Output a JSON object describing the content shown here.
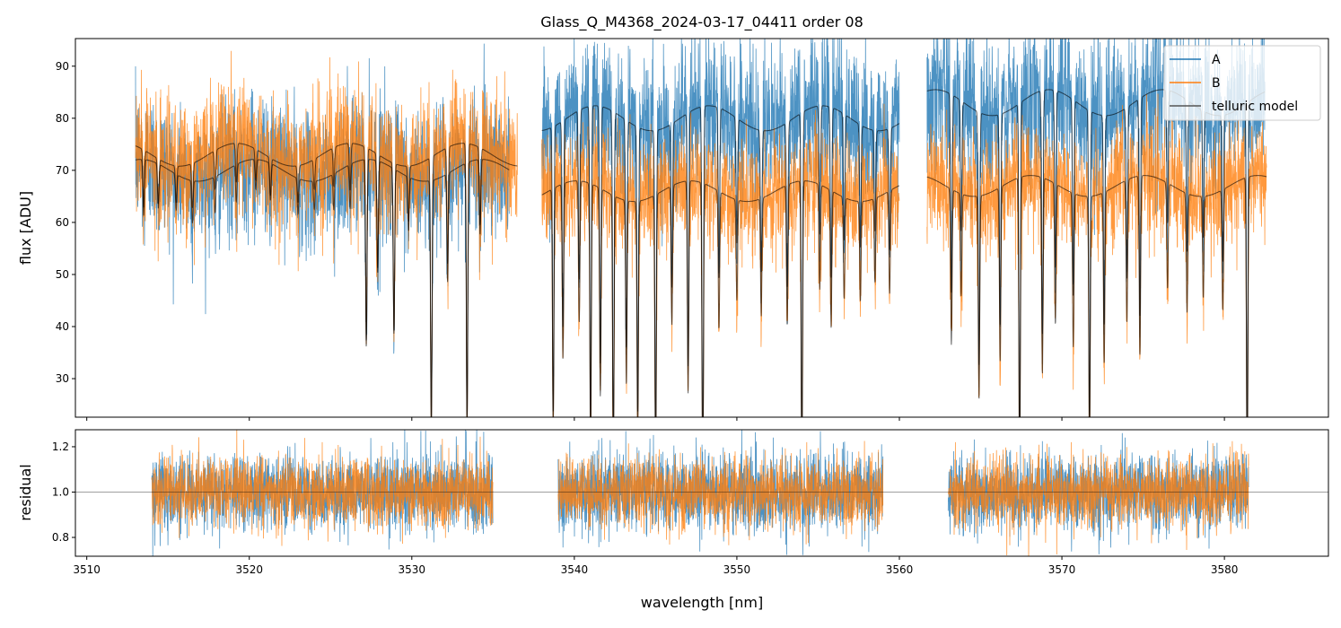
{
  "chart_data": [
    {
      "type": "line",
      "title": "Glass_Q_M4368_2024-03-17_04411  order 08",
      "xlabel": "wavelength [nm]",
      "ylabel": "flux [ADU]",
      "xlim": [
        3509.3,
        3586.4
      ],
      "ylim": [
        22.6,
        95.3
      ],
      "xticks": [
        3510,
        3520,
        3530,
        3540,
        3550,
        3560,
        3570,
        3580
      ],
      "yticks": [
        30,
        40,
        50,
        60,
        70,
        80,
        90
      ],
      "legend": {
        "placement": "top-right",
        "entries": [
          "A",
          "B",
          "telluric model"
        ]
      },
      "series": [
        {
          "name": "A",
          "color": "#1f77b4",
          "segments": [
            {
              "range": [
                3513.0,
                3536.0
              ],
              "level": 70
            },
            {
              "range": [
                3538.0,
                3560.0
              ],
              "level": 80
            },
            {
              "range": [
                3561.7,
                3582.5
              ],
              "level": 83
            }
          ],
          "noise": 0.09
        },
        {
          "name": "B",
          "color": "#ff7f0e",
          "segments": [
            {
              "range": [
                3513.0,
                3536.5
              ],
              "level": 73
            },
            {
              "range": [
                3538.0,
                3560.0
              ],
              "level": 66
            },
            {
              "range": [
                3561.7,
                3582.6
              ],
              "level": 67
            }
          ],
          "noise": 0.08
        },
        {
          "name": "telluric model",
          "color": "#000000"
        }
      ],
      "telluric_lines": [
        [
          3513.5,
          0.15
        ],
        [
          3514.4,
          0.12
        ],
        [
          3515.5,
          0.1
        ],
        [
          3516.5,
          0.12
        ],
        [
          3517.9,
          0.1
        ],
        [
          3519.2,
          0.1
        ],
        [
          3520.4,
          0.08
        ],
        [
          3521.3,
          0.1
        ],
        [
          3523.0,
          0.1
        ],
        [
          3524.0,
          0.08
        ],
        [
          3525.2,
          0.1
        ],
        [
          3526.2,
          0.12
        ],
        [
          3527.2,
          0.5
        ],
        [
          3527.9,
          0.3
        ],
        [
          3528.9,
          0.45
        ],
        [
          3529.8,
          0.15
        ],
        [
          3531.2,
          0.7
        ],
        [
          3532.2,
          0.3
        ],
        [
          3533.4,
          0.7
        ],
        [
          3534.2,
          0.2
        ],
        [
          3538.7,
          0.7
        ],
        [
          3539.3,
          0.5
        ],
        [
          3540.3,
          0.4
        ],
        [
          3541.0,
          0.75
        ],
        [
          3541.6,
          0.6
        ],
        [
          3542.4,
          0.8
        ],
        [
          3543.2,
          0.55
        ],
        [
          3543.9,
          0.7
        ],
        [
          3545.0,
          0.8
        ],
        [
          3546.0,
          0.4
        ],
        [
          3547.0,
          0.6
        ],
        [
          3547.9,
          0.9
        ],
        [
          3548.9,
          0.4
        ],
        [
          3550.0,
          0.3
        ],
        [
          3551.5,
          0.35
        ],
        [
          3553.1,
          0.4
        ],
        [
          3554.0,
          0.8
        ],
        [
          3555.1,
          0.3
        ],
        [
          3555.8,
          0.4
        ],
        [
          3556.6,
          0.3
        ],
        [
          3557.6,
          0.3
        ],
        [
          3558.5,
          0.25
        ],
        [
          3559.4,
          0.3
        ],
        [
          3563.2,
          0.45
        ],
        [
          3563.8,
          0.3
        ],
        [
          3564.9,
          0.6
        ],
        [
          3566.2,
          0.5
        ],
        [
          3567.4,
          0.85
        ],
        [
          3568.8,
          0.55
        ],
        [
          3569.6,
          0.4
        ],
        [
          3570.7,
          0.45
        ],
        [
          3571.7,
          0.75
        ],
        [
          3572.6,
          0.5
        ],
        [
          3574.0,
          0.4
        ],
        [
          3574.8,
          0.5
        ],
        [
          3576.5,
          0.3
        ],
        [
          3577.7,
          0.35
        ],
        [
          3578.7,
          0.3
        ],
        [
          3579.9,
          0.35
        ],
        [
          3581.4,
          0.85
        ]
      ]
    },
    {
      "type": "line",
      "xlabel": "wavelength [nm]",
      "ylabel": "residual",
      "xlim": [
        3509.3,
        3586.4
      ],
      "ylim": [
        0.717,
        1.275
      ],
      "xticks": [
        3510,
        3520,
        3530,
        3540,
        3550,
        3560,
        3570,
        3580
      ],
      "yticks": [
        0.8,
        1.0,
        1.2
      ],
      "reference_line": 1.0,
      "segments": [
        [
          3514.0,
          3535.0
        ],
        [
          3539.0,
          3559.0
        ],
        [
          3563.0,
          3581.5
        ]
      ],
      "series": [
        {
          "name": "A",
          "color": "#1f77b4",
          "noise": 0.085
        },
        {
          "name": "B",
          "color": "#ff7f0e",
          "noise": 0.075
        }
      ]
    }
  ]
}
